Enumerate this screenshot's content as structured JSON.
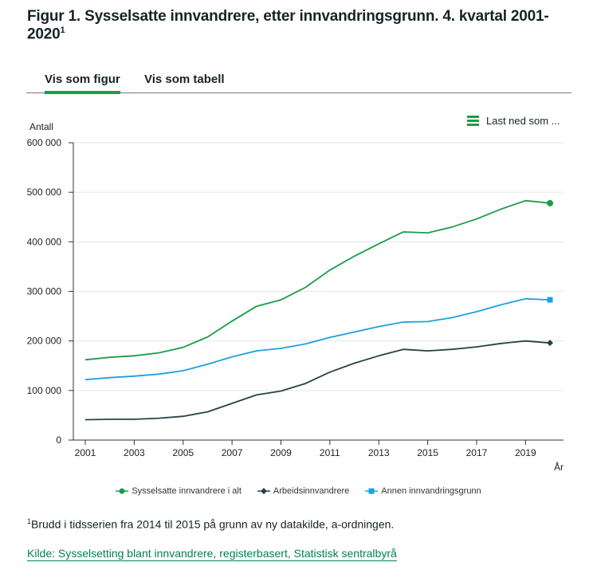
{
  "title": "Figur 1. Sysselsatte innvandrere, etter innvandringsgrunn. 4. kvartal 2001-2020",
  "title_sup": "1",
  "tabs": {
    "figure": "Vis som figur",
    "table": "Vis som tabell"
  },
  "download": "Last ned som ...",
  "footnote_sup": "1",
  "footnote": "Brudd i tidsserien fra 2014 til 2015 på grunn av ny datakilde, a-ordningen.",
  "source": "Kilde: Sysselsetting blant innvandrere, registerbasert, Statistisk sentralbyrå",
  "colors": {
    "green": "#1a9d49",
    "dark": "#274247",
    "blue": "#1da1dc"
  },
  "chart_data": {
    "type": "line",
    "ylabel": "Antall",
    "xlabel": "År",
    "ylim": [
      0,
      600000
    ],
    "yticks": [
      0,
      100000,
      200000,
      300000,
      400000,
      500000,
      600000
    ],
    "ytick_labels": [
      "0",
      "100 000",
      "200 000",
      "300 000",
      "400 000",
      "500 000",
      "600 000"
    ],
    "xtick_labels": [
      "2001",
      "2003",
      "2005",
      "2007",
      "2009",
      "2011",
      "2013",
      "2015",
      "2017",
      "2019"
    ],
    "x": [
      2001,
      2002,
      2003,
      2004,
      2005,
      2006,
      2007,
      2008,
      2009,
      2010,
      2011,
      2012,
      2013,
      2014,
      2015,
      2016,
      2017,
      2018,
      2019,
      2020
    ],
    "series": [
      {
        "name": "Sysselsatte innvandrere i alt",
        "color": "#1a9d49",
        "marker": "circle",
        "values": [
          162000,
          167000,
          170000,
          176000,
          187000,
          208000,
          240000,
          270000,
          283000,
          308000,
          343000,
          371000,
          396000,
          420000,
          418000,
          430000,
          446000,
          466000,
          483000,
          478000
        ]
      },
      {
        "name": "Arbeidsinnvandrere",
        "color": "#274247",
        "marker": "diamond",
        "values": [
          41000,
          42000,
          42000,
          44000,
          48000,
          57000,
          74000,
          91000,
          99000,
          114000,
          137000,
          155000,
          170000,
          183000,
          180000,
          183000,
          188000,
          195000,
          200000,
          196000
        ]
      },
      {
        "name": "Annen innvandringsgrunn",
        "color": "#1da1dc",
        "marker": "square",
        "values": [
          122000,
          126000,
          129000,
          133000,
          140000,
          153000,
          168000,
          180000,
          185000,
          194000,
          207000,
          218000,
          229000,
          238000,
          239000,
          247000,
          259000,
          273000,
          285000,
          283000
        ]
      }
    ]
  }
}
